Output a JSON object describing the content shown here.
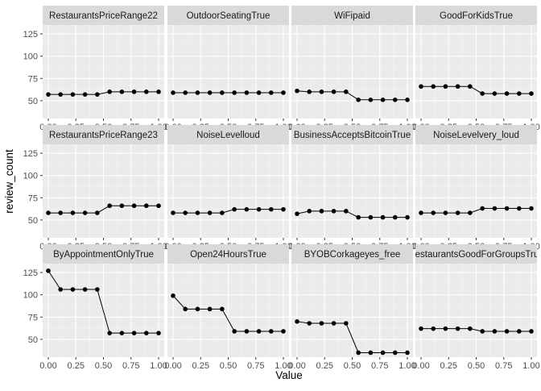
{
  "chart_data": {
    "type": "line",
    "layout": "facet_wrap",
    "xlabel": "Value",
    "ylabel": "review_count",
    "xlim": [
      0,
      1
    ],
    "ylim": [
      30,
      135
    ],
    "x_ticks": [
      "0.00",
      "0.25",
      "0.50",
      "0.75",
      "1.00"
    ],
    "y_ticks": [
      "50",
      "75",
      "100",
      "125"
    ],
    "x": [
      0,
      0.111,
      0.222,
      0.333,
      0.444,
      0.556,
      0.667,
      0.778,
      0.889,
      1.0
    ],
    "panels": [
      {
        "name": "RestaurantsPriceRange22",
        "values": [
          57,
          57,
          57,
          57,
          57,
          60,
          60,
          60,
          60,
          60
        ]
      },
      {
        "name": "OutdoorSeatingTrue",
        "values": [
          59,
          59,
          59,
          59,
          59,
          59,
          59,
          59,
          59,
          59
        ]
      },
      {
        "name": "WiFipaid",
        "values": [
          61,
          60,
          60,
          60,
          60,
          51,
          51,
          51,
          51,
          51
        ]
      },
      {
        "name": "GoodForKidsTrue",
        "values": [
          66,
          66,
          66,
          66,
          66,
          58,
          58,
          58,
          58,
          58
        ]
      },
      {
        "name": "RestaurantsPriceRange23",
        "values": [
          58,
          58,
          58,
          58,
          58,
          66,
          66,
          66,
          66,
          66
        ]
      },
      {
        "name": "NoiseLevelloud",
        "values": [
          58,
          58,
          58,
          58,
          58,
          62,
          62,
          62,
          62,
          62
        ]
      },
      {
        "name": "BusinessAcceptsBitcoinTrue",
        "values": [
          57,
          60,
          60,
          60,
          60,
          53,
          53,
          53,
          53,
          53
        ]
      },
      {
        "name": "NoiseLevelvery_loud",
        "values": [
          58,
          58,
          58,
          58,
          58,
          63,
          63,
          63,
          63,
          63
        ]
      },
      {
        "name": "ByAppointmentOnlyTrue",
        "values": [
          127,
          106,
          106,
          106,
          106,
          57,
          57,
          57,
          57,
          57
        ]
      },
      {
        "name": "Open24HoursTrue",
        "values": [
          99,
          84,
          84,
          84,
          84,
          59,
          59,
          59,
          59,
          59
        ]
      },
      {
        "name": "BYOBCorkageyes_free",
        "values": [
          70,
          68,
          68,
          68,
          68,
          35,
          35,
          35,
          35,
          35
        ]
      },
      {
        "name": "RestaurantsGoodForGroupsTrue",
        "values": [
          62,
          62,
          62,
          62,
          62,
          59,
          59,
          59,
          59,
          59
        ]
      }
    ],
    "colors": {
      "panel_bg": "#ebebeb",
      "strip_bg": "#d9d9d9",
      "grid_major": "#ffffff",
      "grid_minor": "#f5f5f5",
      "line": "#000000",
      "point": "#000000"
    }
  }
}
